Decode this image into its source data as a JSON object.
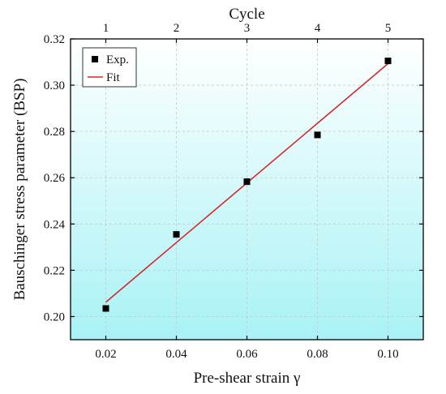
{
  "chart_data": {
    "type": "scatter",
    "xlabel": "Pre-shear strain γ",
    "ylabel": "Bauschinger stress parameter (BSP)",
    "x2label": "Cycle",
    "xlim": [
      0.01,
      0.11
    ],
    "ylim": [
      0.19,
      0.32
    ],
    "xticks": [
      0.02,
      0.04,
      0.06,
      0.08,
      0.1
    ],
    "xtick_labels": [
      "0.02",
      "0.04",
      "0.06",
      "0.08",
      "0.10"
    ],
    "yticks": [
      0.2,
      0.22,
      0.24,
      0.26,
      0.28,
      0.3,
      0.32
    ],
    "ytick_labels": [
      "0.20",
      "0.22",
      "0.24",
      "0.26",
      "0.28",
      "0.30",
      "0.32"
    ],
    "x2ticks": [
      0.02,
      0.04,
      0.06,
      0.08,
      0.1
    ],
    "x2tick_labels": [
      "1",
      "2",
      "3",
      "4",
      "5"
    ],
    "grid": true,
    "legend_position": "top-left",
    "background": "gradient white to light cyan (top to bottom)",
    "series": [
      {
        "name": "Exp.",
        "kind": "scatter",
        "marker": "square",
        "color": "#000000",
        "points": [
          {
            "x": 0.02,
            "y": 0.2035
          },
          {
            "x": 0.04,
            "y": 0.2355
          },
          {
            "x": 0.06,
            "y": 0.2583
          },
          {
            "x": 0.08,
            "y": 0.2785
          },
          {
            "x": 0.1,
            "y": 0.3105
          }
        ]
      },
      {
        "name": "Fit",
        "kind": "line",
        "color": "#d62728",
        "points": [
          {
            "x": 0.02,
            "y": 0.2062
          },
          {
            "x": 0.1,
            "y": 0.3093
          }
        ]
      }
    ]
  },
  "colors": {
    "frame": "#000000",
    "grid": "#c8c8c8",
    "gradient_top": "#ffffff",
    "gradient_bottom": "#a8f2f5",
    "fit_line": "#d62728",
    "markers": "#000000"
  }
}
